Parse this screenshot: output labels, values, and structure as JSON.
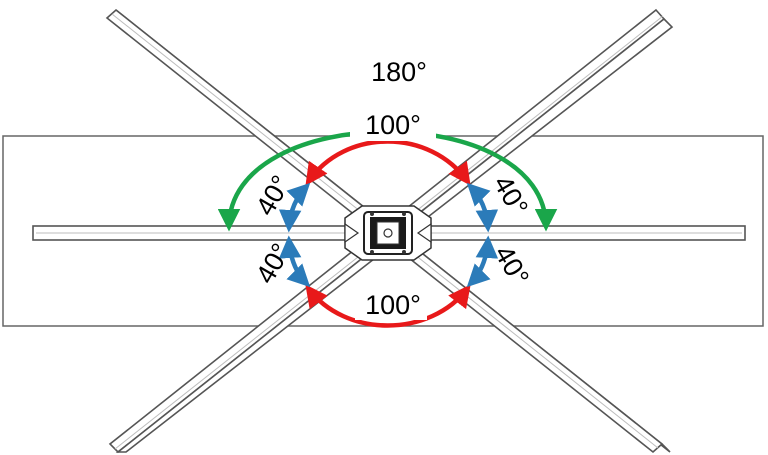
{
  "colors": {
    "red_arc": "#e8191a",
    "green_arc": "#1aa64a",
    "blue_arc": "#2b7bb9",
    "outline": "#555555"
  },
  "angles": {
    "top": "100°",
    "bottom": "100°",
    "outer": "180°",
    "left_upper": "40°",
    "left_lower": "40°",
    "right_upper": "40°",
    "right_lower": "40°"
  }
}
